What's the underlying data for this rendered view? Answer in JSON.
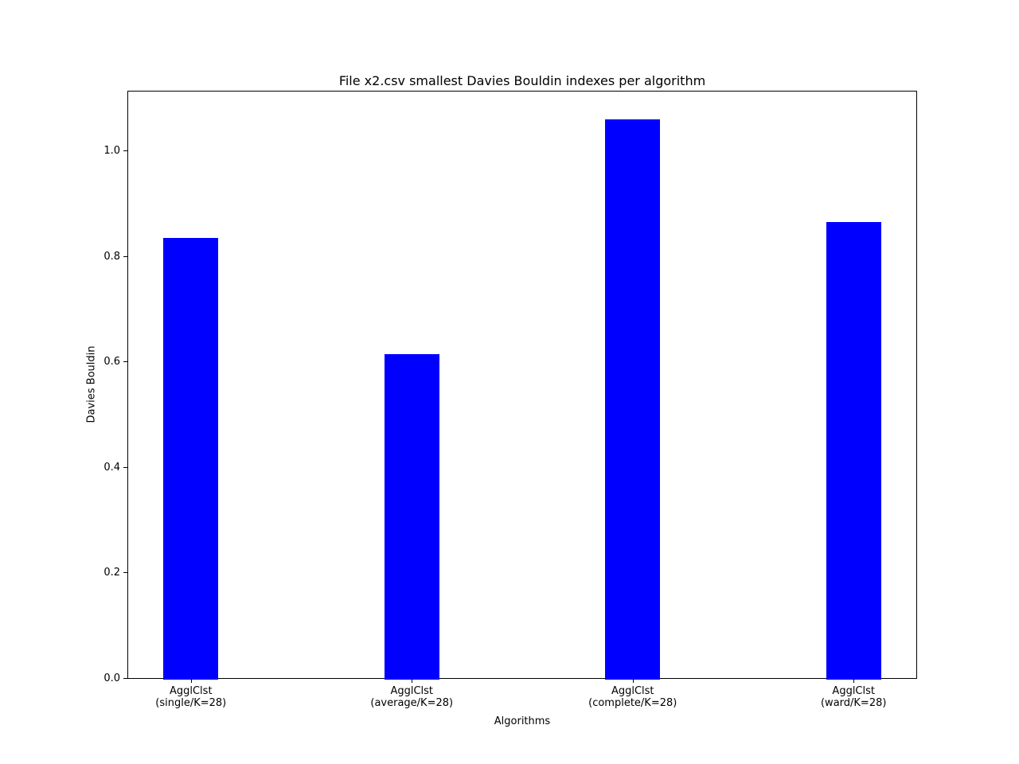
{
  "chart_data": {
    "type": "bar",
    "title": "File x2.csv smallest Davies Bouldin indexes per algorithm",
    "xlabel": "Algorithms",
    "ylabel": "Davies Bouldin",
    "categories": [
      {
        "id": "single",
        "line1": "AgglClst",
        "line2": "(single/K=28)"
      },
      {
        "id": "average",
        "line1": "AgglClst",
        "line2": "(average/K=28)"
      },
      {
        "id": "complete",
        "line1": "AgglClst",
        "line2": "(complete/K=28)"
      },
      {
        "id": "ward",
        "line1": "AgglClst",
        "line2": "(ward/K=28)"
      }
    ],
    "values": [
      0.838,
      0.617,
      1.062,
      0.867
    ],
    "bar_color": "#0000ff",
    "bar_width": 0.25,
    "xlim": [
      -0.2875,
      3.2875
    ],
    "ylim": [
      0,
      1.115
    ],
    "yticks": [
      0.0,
      0.2,
      0.4,
      0.6,
      0.8,
      1.0
    ],
    "ytick_format_decimals": 1,
    "grid": false,
    "legend": "none"
  }
}
